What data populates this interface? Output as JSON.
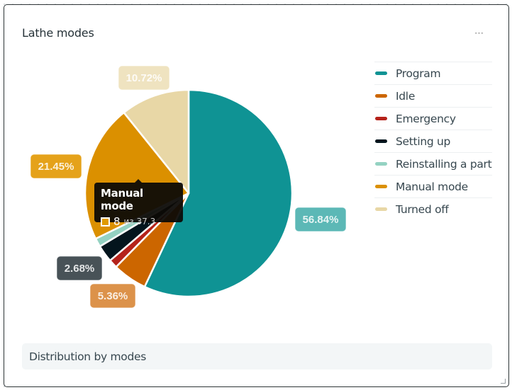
{
  "widget": {
    "title": "Lathe modes",
    "menu_label": "⋯",
    "footer_text": "Distribution by modes"
  },
  "tooltip": {
    "title": "Manual mode",
    "value": "8",
    "of_text": "из 37.3",
    "color": "#e09a00"
  },
  "chart_data": {
    "type": "pie",
    "title": "Lathe modes",
    "subtitle": "Distribution by modes",
    "total": 37.3,
    "legend_position": "right",
    "categories": [
      "Program",
      "Idle",
      "Emergency",
      "Setting up",
      "Reinstalling a part",
      "Manual mode",
      "Turned off"
    ],
    "values": [
      21.2,
      2.0,
      0.5,
      1.0,
      0.5,
      8.0,
      4.0
    ],
    "percent_labels": [
      "56.84%",
      "5.36%",
      "",
      "2.68%",
      "",
      "21.45%",
      "10.72%"
    ],
    "colors": [
      "#0f9394",
      "#cc6600",
      "#b5221a",
      "#04151d",
      "#94d2c2",
      "#db9000",
      "#e8d7a6"
    ],
    "label_colors": [
      "#5cb8b6",
      "#dc924a",
      "",
      "#485257",
      "",
      "#e5a21a",
      "#efe3c0"
    ]
  }
}
